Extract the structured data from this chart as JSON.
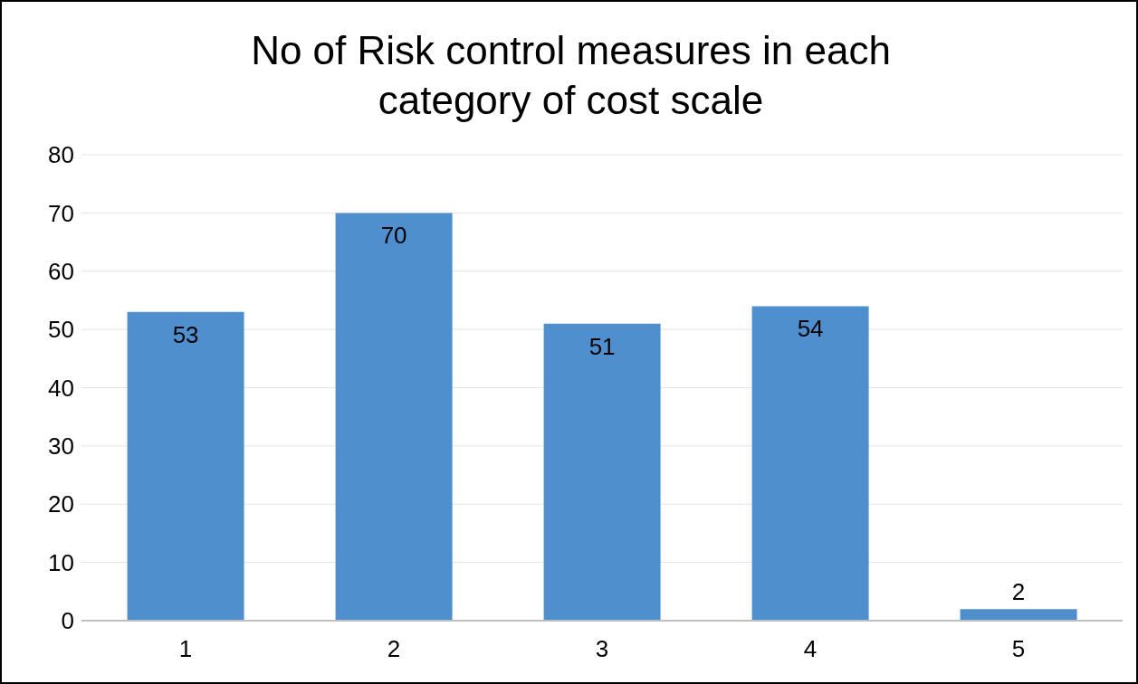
{
  "chart_data": {
    "type": "bar",
    "title": "No of Risk control measures in each category of cost scale",
    "categories": [
      "1",
      "2",
      "3",
      "4",
      "5"
    ],
    "values": [
      53,
      70,
      51,
      54,
      2
    ],
    "color": "#4f8fcd",
    "ylim": [
      0,
      80
    ],
    "yticks": [
      0,
      10,
      20,
      30,
      40,
      50,
      60,
      70,
      80
    ],
    "grid": "y",
    "data_labels": true
  }
}
